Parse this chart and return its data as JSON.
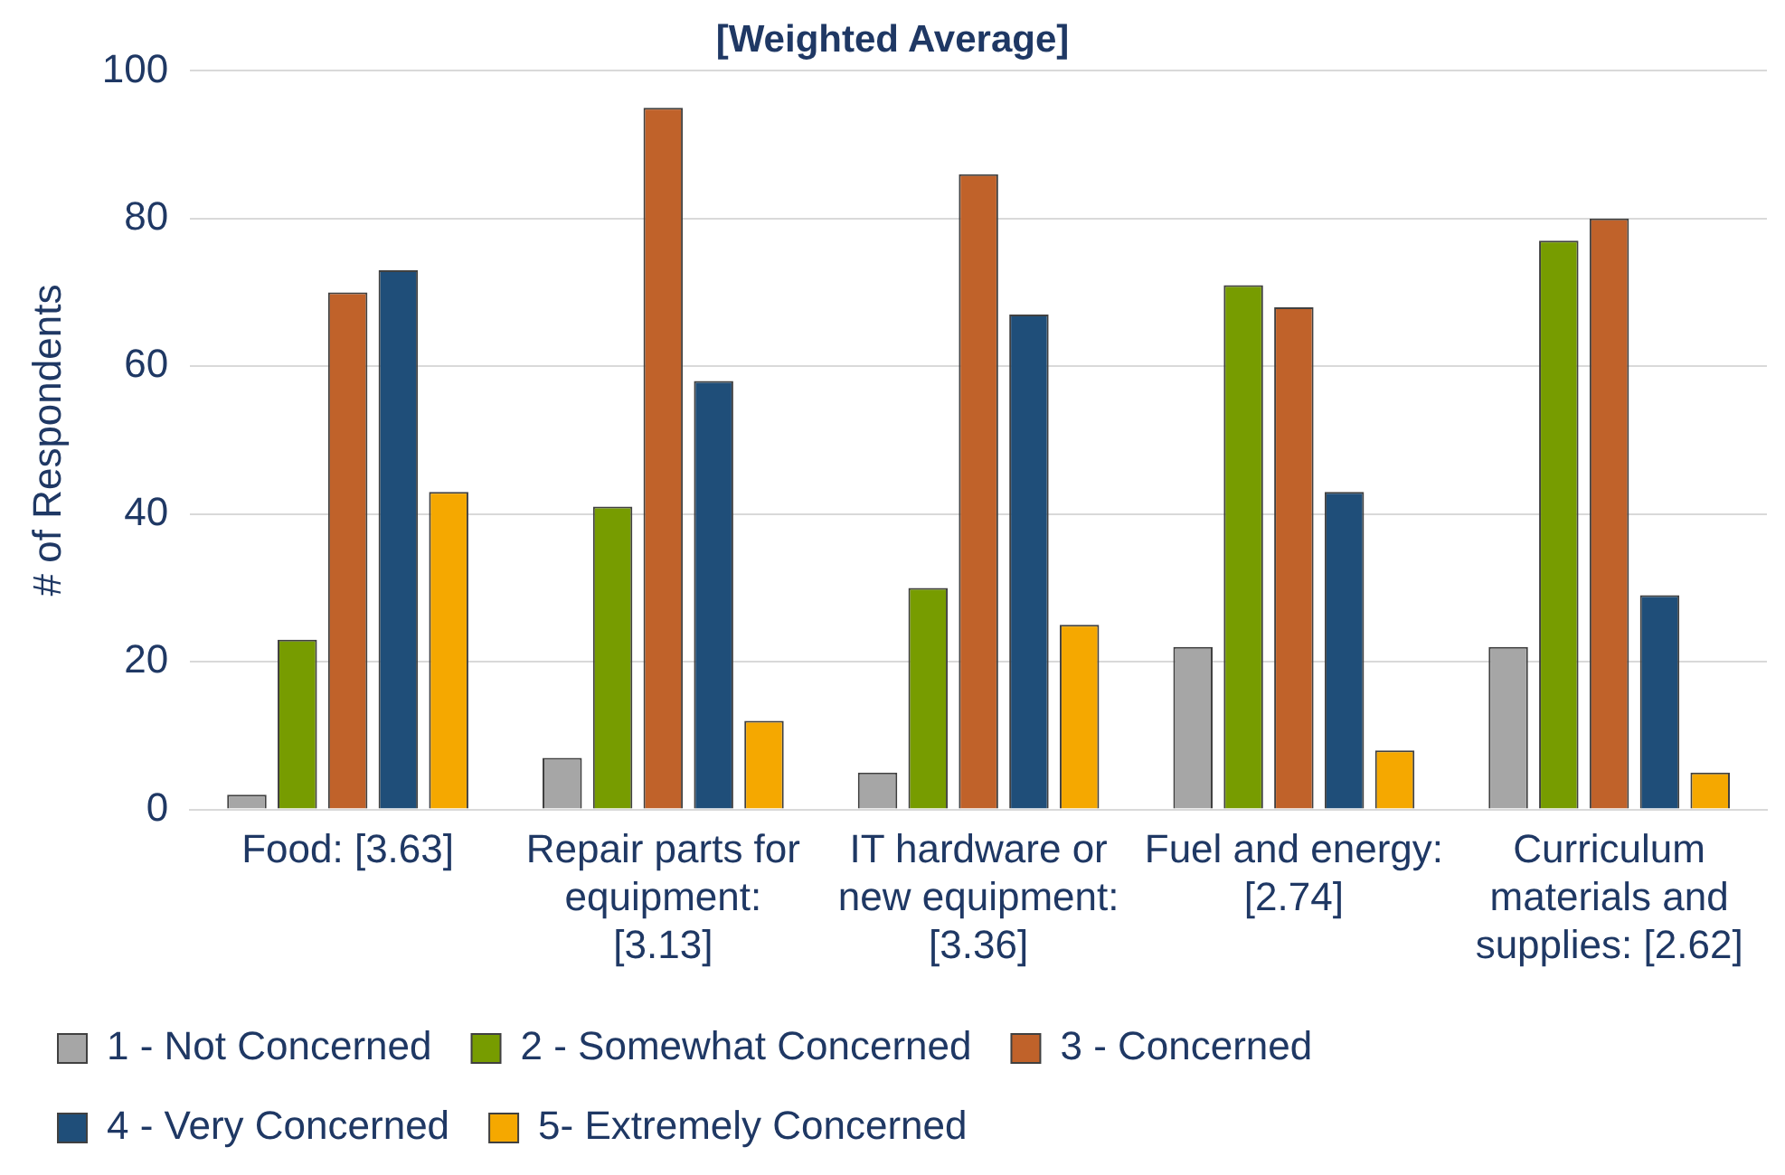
{
  "chart_data": {
    "type": "bar",
    "title": "[Weighted Average]",
    "ylabel": "# of Respondents",
    "categories": [
      "Food: [3.63]",
      "Repair parts for equipment: [3.13]",
      "IT hardware or new equipment: [3.36]",
      "Fuel and energy: [2.74]",
      "Curriculum materials and supplies: [2.62]"
    ],
    "series": [
      {
        "name": "1 - Not Concerned",
        "color": "#a6a6a6",
        "values": [
          2,
          7,
          5,
          22,
          22
        ]
      },
      {
        "name": "2 - Somewhat Concerned",
        "color": "#779c00",
        "values": [
          23,
          41,
          30,
          71,
          77
        ]
      },
      {
        "name": "3 - Concerned",
        "color": "#c0622a",
        "values": [
          70,
          95,
          86,
          68,
          80
        ]
      },
      {
        "name": "4 - Very Concerned",
        "color": "#1f4e79",
        "values": [
          73,
          58,
          67,
          43,
          29
        ]
      },
      {
        "name": "5- Extremely Concerned",
        "color": "#f5a800",
        "values": [
          43,
          12,
          25,
          8,
          5
        ]
      }
    ],
    "ylim": [
      0,
      100
    ],
    "yticks": [
      0,
      20,
      40,
      60,
      80,
      100
    ],
    "grid": "y",
    "legend": "bottom"
  }
}
